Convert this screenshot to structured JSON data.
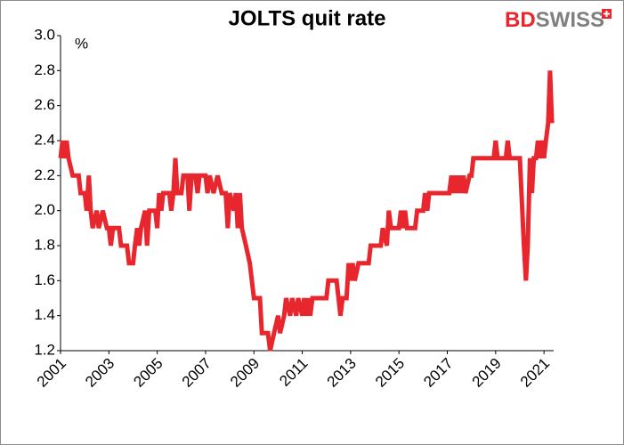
{
  "chart_data": {
    "type": "line",
    "title": "JOLTS quit rate",
    "y_unit": "%",
    "logo": {
      "left": "BD",
      "right": "SWISS"
    },
    "xlim": [
      2001,
      2021.4
    ],
    "xticks": [
      2001,
      2003,
      2005,
      2007,
      2009,
      2011,
      2013,
      2015,
      2017,
      2019,
      2021
    ],
    "ylim": [
      1.2,
      3.0
    ],
    "yticks": [
      1.2,
      1.4,
      1.6,
      1.8,
      {
        "value": 2,
        "label": "2.0"
      },
      2.2,
      2.4,
      2.6,
      2.8,
      {
        "value": 3,
        "label": "3.0"
      }
    ],
    "grid": false,
    "series": [
      {
        "name": "JOLTS quit rate",
        "color": "#e8262d",
        "x": [
          2001.0,
          2001.08,
          2001.17,
          2001.25,
          2001.33,
          2001.5,
          2001.75,
          2001.83,
          2002.0,
          2002.08,
          2002.17,
          2002.25,
          2002.33,
          2002.5,
          2002.58,
          2002.75,
          2002.92,
          2003.0,
          2003.08,
          2003.17,
          2003.42,
          2003.5,
          2003.75,
          2003.83,
          2004.0,
          2004.08,
          2004.17,
          2004.25,
          2004.33,
          2004.5,
          2004.58,
          2004.67,
          2004.92,
          2005.0,
          2005.08,
          2005.17,
          2005.25,
          2005.5,
          2005.58,
          2005.67,
          2005.75,
          2005.83,
          2006.0,
          2006.08,
          2006.25,
          2006.33,
          2006.42,
          2006.58,
          2006.67,
          2006.75,
          2007.0,
          2007.08,
          2007.17,
          2007.33,
          2007.5,
          2007.67,
          2007.83,
          2007.92,
          2008.0,
          2008.17,
          2008.25,
          2008.33,
          2008.42,
          2008.5,
          2008.67,
          2008.83,
          2009.0,
          2009.25,
          2009.33,
          2009.58,
          2009.67,
          2009.83,
          2010.0,
          2010.08,
          2010.25,
          2010.33,
          2010.5,
          2010.58,
          2010.75,
          2010.83,
          2011.0,
          2011.08,
          2011.17,
          2011.25,
          2011.33,
          2011.42,
          2012.0,
          2012.08,
          2012.42,
          2012.5,
          2012.58,
          2012.67,
          2012.83,
          2012.92,
          2013.0,
          2013.08,
          2013.17,
          2013.33,
          2013.75,
          2013.83,
          2014.25,
          2014.33,
          2014.5,
          2014.58,
          2014.67,
          2015.0,
          2015.08,
          2015.17,
          2015.25,
          2015.33,
          2015.67,
          2015.75,
          2016.0,
          2016.08,
          2016.17,
          2016.25,
          2017.08,
          2017.17,
          2017.25,
          2017.33,
          2017.42,
          2017.5,
          2017.58,
          2017.67,
          2017.75,
          2017.92,
          2018.0,
          2018.08,
          2018.92,
          2019.0,
          2019.08,
          2019.42,
          2019.5,
          2019.58,
          2019.92,
          2020.0,
          2020.17,
          2020.25,
          2020.33,
          2020.42,
          2020.5,
          2020.58,
          2020.67,
          2020.75,
          2020.83,
          2020.92,
          2021.0,
          2021.08,
          2021.17,
          2021.25,
          2021.33
        ],
        "values": [
          2.3,
          2.4,
          2.3,
          2.4,
          2.3,
          2.2,
          2.2,
          2.1,
          2.1,
          2.0,
          2.2,
          2.0,
          1.9,
          2.0,
          1.9,
          2.0,
          1.9,
          1.9,
          1.8,
          1.9,
          1.9,
          1.8,
          1.8,
          1.7,
          1.7,
          1.8,
          1.9,
          1.8,
          1.9,
          2.0,
          1.8,
          2.0,
          2.0,
          1.9,
          2.1,
          2.0,
          2.1,
          2.1,
          2.0,
          2.1,
          2.3,
          2.1,
          2.1,
          2.2,
          2.2,
          2.0,
          2.2,
          2.2,
          2.1,
          2.2,
          2.2,
          2.1,
          2.2,
          2.1,
          2.2,
          2.1,
          2.1,
          1.9,
          2.1,
          2.0,
          2.1,
          1.9,
          2.1,
          1.9,
          1.8,
          1.7,
          1.5,
          1.5,
          1.3,
          1.3,
          1.2,
          1.3,
          1.4,
          1.3,
          1.4,
          1.5,
          1.4,
          1.5,
          1.4,
          1.5,
          1.4,
          1.5,
          1.4,
          1.5,
          1.4,
          1.5,
          1.5,
          1.6,
          1.6,
          1.5,
          1.4,
          1.5,
          1.5,
          1.7,
          1.6,
          1.7,
          1.6,
          1.7,
          1.7,
          1.8,
          1.8,
          1.9,
          1.8,
          2.0,
          1.9,
          1.9,
          2.0,
          1.9,
          2.0,
          1.9,
          1.9,
          2.0,
          2.0,
          2.1,
          2.0,
          2.1,
          2.1,
          2.2,
          2.1,
          2.2,
          2.1,
          2.2,
          2.1,
          2.2,
          2.1,
          2.2,
          2.2,
          2.3,
          2.3,
          2.4,
          2.3,
          2.3,
          2.4,
          2.3,
          2.3,
          2.3,
          1.8,
          1.6,
          1.8,
          2.3,
          2.1,
          2.3,
          2.3,
          2.4,
          2.3,
          2.4,
          2.3,
          2.4,
          2.5,
          2.8,
          2.5
        ]
      }
    ]
  }
}
